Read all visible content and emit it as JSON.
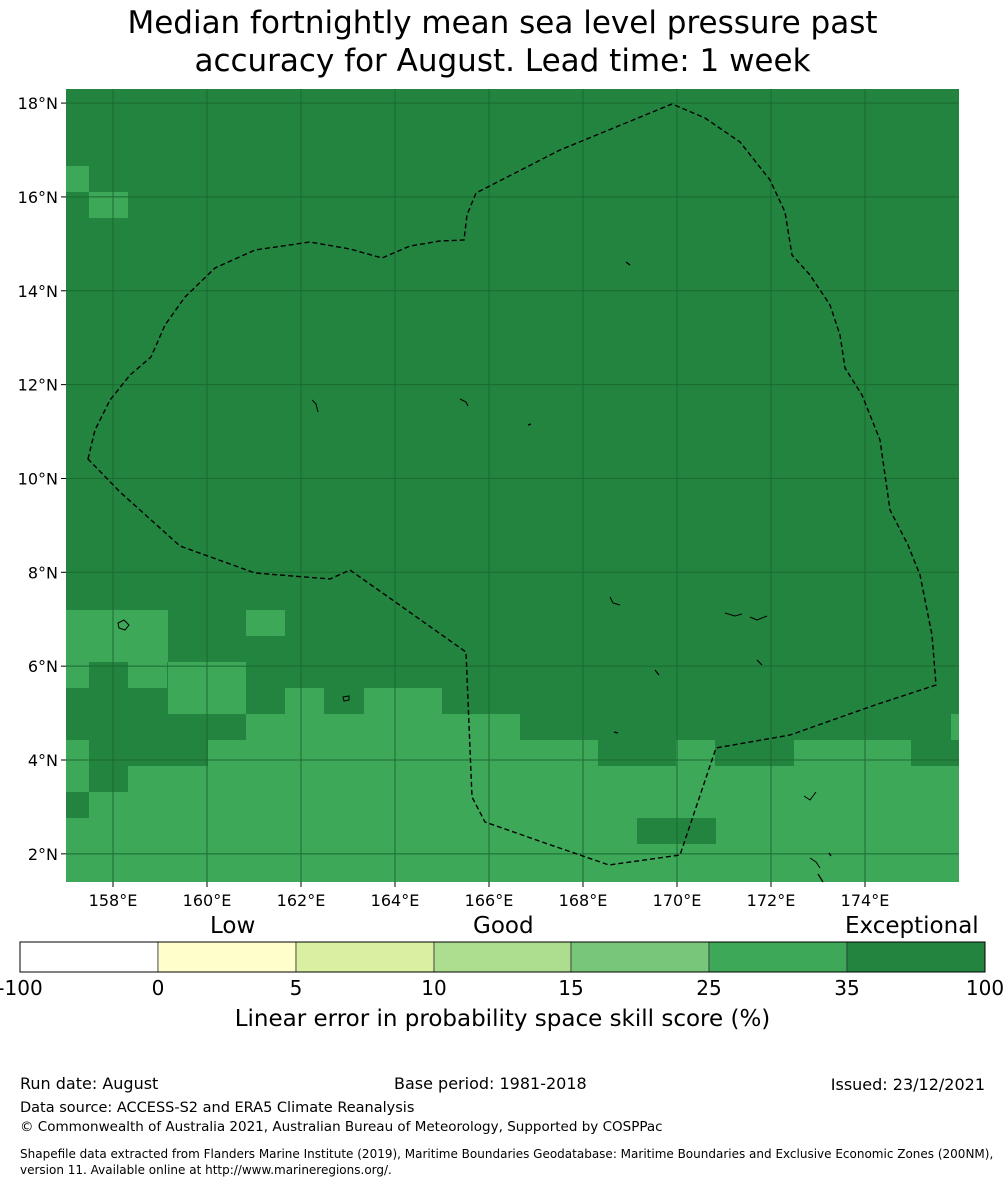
{
  "title_line1": "Median fortnightly mean sea level pressure past",
  "title_line2": "accuracy for August. Lead time: 1 week",
  "map": {
    "lon_range": [
      157,
      176
    ],
    "lat_range": [
      1.4,
      18.3
    ],
    "lon_ticks": [
      "158°E",
      "160°E",
      "162°E",
      "164°E",
      "166°E",
      "168°E",
      "170°E",
      "172°E",
      "174°E"
    ],
    "lat_ticks": [
      "18°N",
      "16°N",
      "14°N",
      "12°N",
      "10°N",
      "8°N",
      "6°N",
      "4°N",
      "2°N"
    ],
    "base_category_color": "#23843f",
    "good_category_color": "#3ea859",
    "boundary_style": "dashed"
  },
  "colorbar": {
    "category_labels": [
      "Low",
      "Good",
      "Exceptional"
    ],
    "ticks": [
      "-100",
      "0",
      "5",
      "10",
      "15",
      "25",
      "35",
      "100"
    ],
    "colors": [
      "#ffffff",
      "#ffffcc",
      "#d9f0a3",
      "#addd8e",
      "#78c679",
      "#3ea859",
      "#23843f"
    ],
    "label": "Linear error in probability space skill score (%)"
  },
  "footer": {
    "run_date": "Run date: August",
    "base_period": "Base period: 1981-2018",
    "issued": "Issued: 23/12/2021",
    "data_source": "Data source: ACCESS-S2 and ERA5 Climate Reanalysis",
    "copyright": "© Commonwealth of Australia 2021, Australian Bureau of Meteorology, Supported by COSPPac",
    "shapefile": "Shapefile data extracted from Flanders Marine Institute (2019), Maritime Boundaries Geodatabase: Maritime Boundaries and Exclusive Economic Zones (200NM), version 11. Available online at http://www.marineregions.org/."
  }
}
